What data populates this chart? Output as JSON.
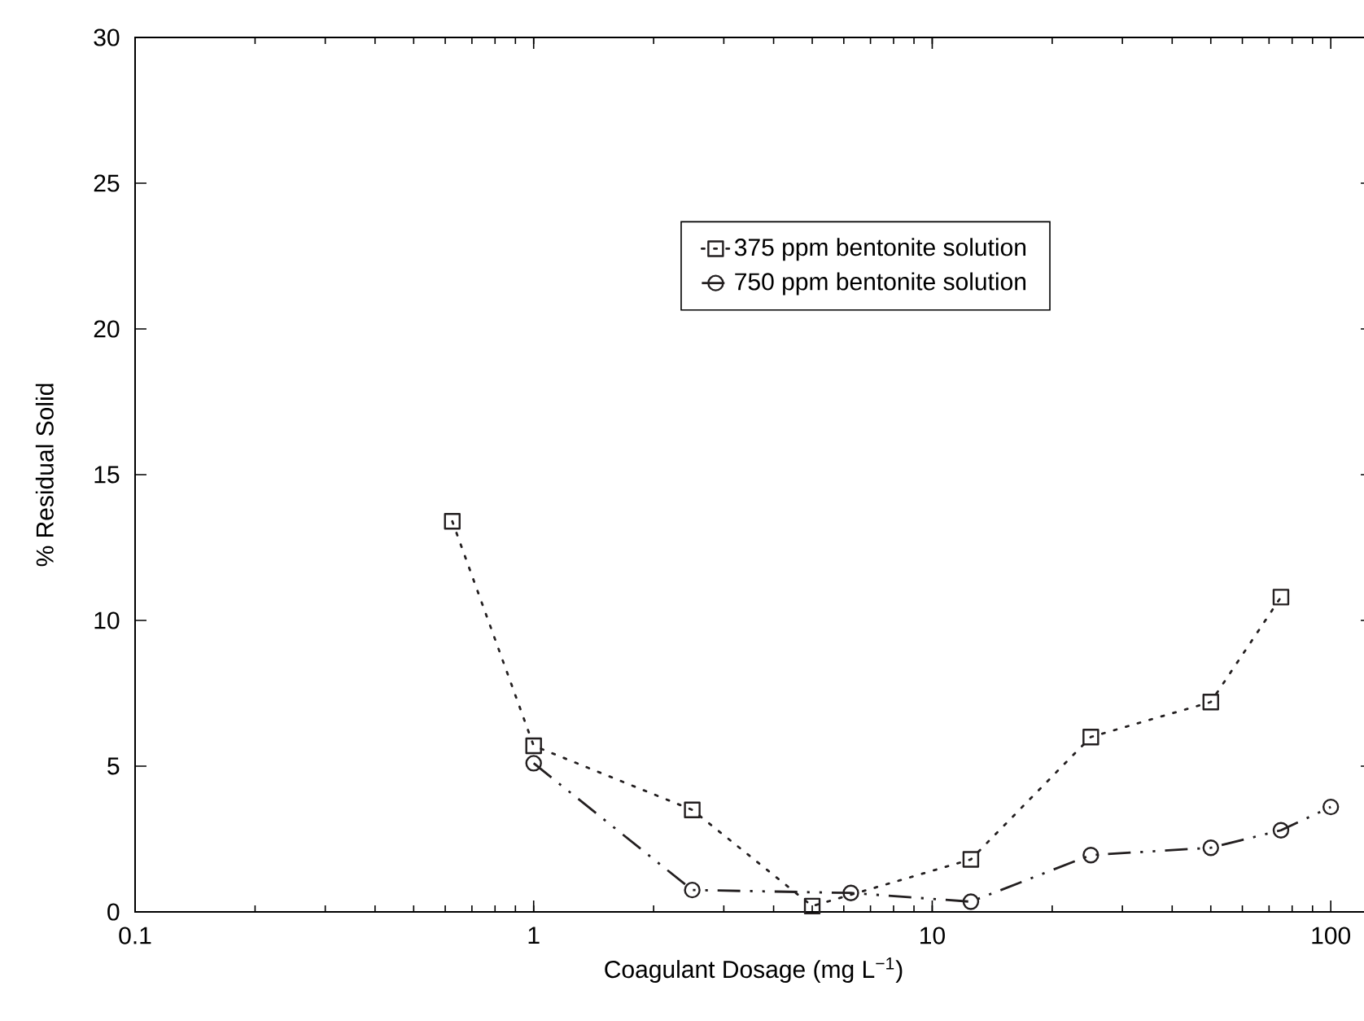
{
  "chart_data": {
    "type": "line",
    "xlabel": "Coagulant Dosage (mg L$^{−1}$)",
    "ylabel": "% Residual Solid",
    "log": "x",
    "xlim": [
      0.1,
      127
    ],
    "xticks": [
      0.1,
      1,
      10,
      100
    ],
    "ylim": [
      0,
      30
    ],
    "yticks": [
      0,
      5,
      10,
      15,
      20,
      25,
      30
    ],
    "legend": "top right",
    "grid": false,
    "series": [
      {
        "name": "375 ppm bentonite solution",
        "color": "#231f20",
        "marker": "square",
        "line_style": "dotted",
        "x": [
          0.625,
          1,
          2.5,
          5,
          12.5,
          25,
          50,
          75
        ],
        "values": [
          13.4,
          5.7,
          3.5,
          0.2,
          1.8,
          6.0,
          7.2,
          10.8
        ]
      },
      {
        "name": "750 ppm bentonite solution",
        "color": "#231f20",
        "marker": "circle",
        "line_style": "dashed",
        "x": [
          1,
          2.5,
          6.25,
          12.5,
          25,
          50,
          75,
          100
        ],
        "values": [
          5.1,
          0.75,
          0.65,
          0.35,
          1.95,
          2.2,
          2.8,
          3.6
        ]
      }
    ]
  }
}
